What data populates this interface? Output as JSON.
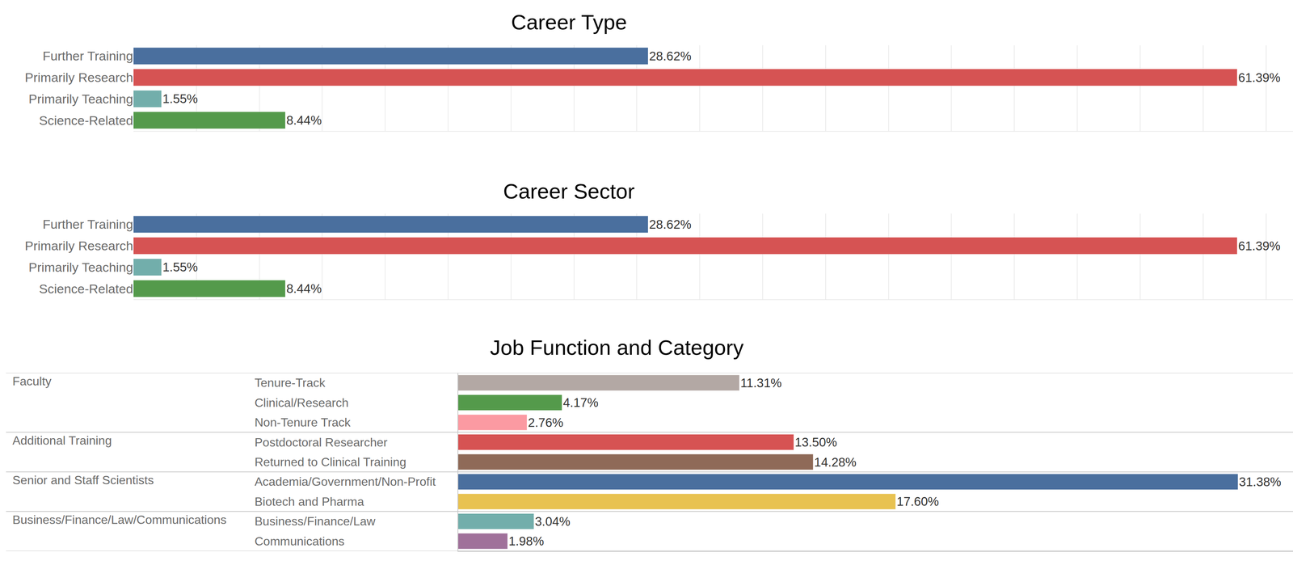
{
  "chart_data": [
    {
      "type": "bar",
      "title": "Career Type",
      "orientation": "horizontal",
      "categories": [
        "Further Training",
        "Primarily Research",
        "Primarily Teaching",
        "Science-Related"
      ],
      "values": [
        28.62,
        61.39,
        1.55,
        8.44
      ],
      "value_labels": [
        "28.62%",
        "61.39%",
        "1.55%",
        "8.44%"
      ],
      "colors": [
        "#4a6f9e",
        "#d65353",
        "#72aeab",
        "#549a4b"
      ],
      "xlim": [
        0,
        64.5
      ],
      "xticks": [
        0,
        3.5,
        7,
        10.5,
        14,
        17.5,
        21,
        24.5,
        28,
        31.5,
        35,
        38.5,
        42,
        45.5,
        49,
        52.5,
        56,
        59.5,
        63
      ],
      "grid": true,
      "data_labels": true,
      "tick_labels": "y"
    },
    {
      "type": "bar",
      "title": "Career Sector",
      "orientation": "horizontal",
      "categories": [
        "Further Training",
        "Primarily Research",
        "Primarily Teaching",
        "Science-Related"
      ],
      "values": [
        28.62,
        61.39,
        1.55,
        8.44
      ],
      "value_labels": [
        "28.62%",
        "61.39%",
        "1.55%",
        "8.44%"
      ],
      "colors": [
        "#4a6f9e",
        "#d65353",
        "#72aeab",
        "#549a4b"
      ],
      "xlim": [
        0,
        64.5
      ],
      "xticks": [
        0,
        3.5,
        7,
        10.5,
        14,
        17.5,
        21,
        24.5,
        28,
        31.5,
        35,
        38.5,
        42,
        45.5,
        49,
        52.5,
        56,
        59.5,
        63
      ],
      "grid": true,
      "data_labels": true,
      "tick_labels": "y"
    },
    {
      "type": "bar",
      "title": "Job Function and Category",
      "orientation": "horizontal",
      "groups": [
        {
          "name": "Faculty",
          "categories": [
            "Tenure-Track",
            "Clinical/Research",
            "Non-Tenure Track"
          ],
          "values": [
            11.31,
            4.17,
            2.76
          ],
          "value_labels": [
            "11.31%",
            "4.17%",
            "2.76%"
          ],
          "colors": [
            "#b3a8a4",
            "#549a4b",
            "#fb9aa2"
          ]
        },
        {
          "name": "Additional Training",
          "categories": [
            "Postdoctoral Researcher",
            "Returned to Clinical Training"
          ],
          "values": [
            13.5,
            14.28
          ],
          "value_labels": [
            "13.50%",
            "14.28%"
          ],
          "colors": [
            "#d65353",
            "#8f6a58"
          ]
        },
        {
          "name": "Senior and Staff Scientists",
          "categories": [
            "Academia/Government/Non-Profit",
            "Biotech and Pharma"
          ],
          "values": [
            31.38,
            17.6
          ],
          "value_labels": [
            "31.38%",
            "17.60%"
          ],
          "colors": [
            "#4a6f9e",
            "#e8c251"
          ]
        },
        {
          "name": "Business/Finance/Law/Communications",
          "categories": [
            "Business/Finance/Law",
            "Communications"
          ],
          "values": [
            3.04,
            1.98
          ],
          "value_labels": [
            "3.04%",
            "1.98%"
          ],
          "colors": [
            "#72aeab",
            "#a0719a"
          ]
        }
      ],
      "xlim": [
        0,
        33.6
      ],
      "grid": false,
      "data_labels": true,
      "tick_labels": "y"
    }
  ]
}
